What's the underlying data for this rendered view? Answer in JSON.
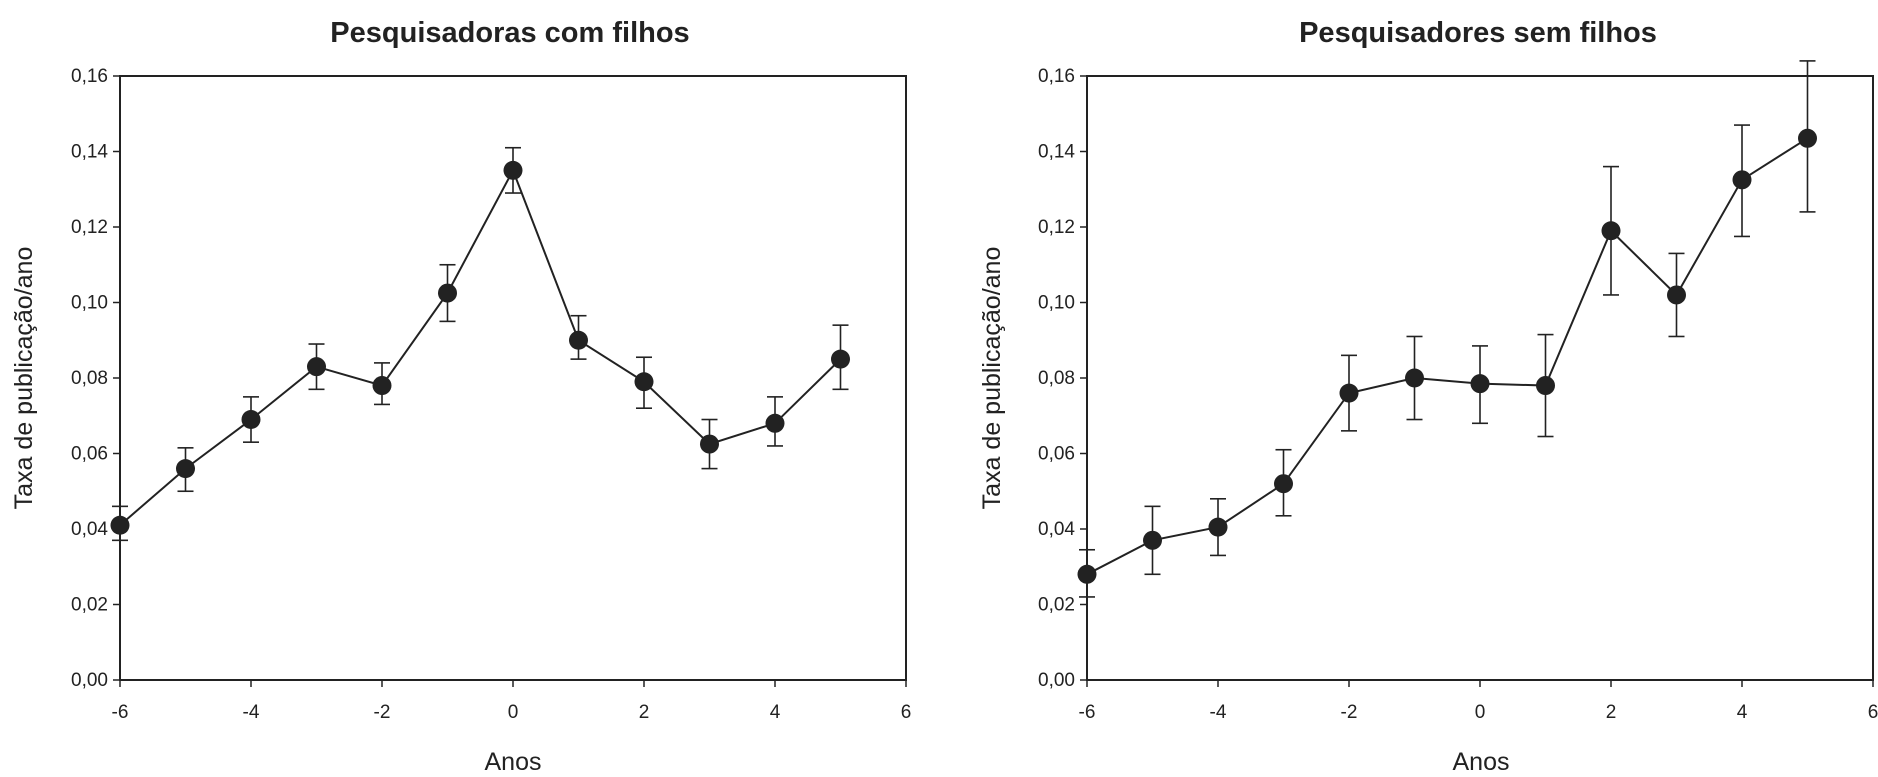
{
  "chart_data": [
    {
      "type": "line",
      "title": "Pesquisadoras com filhos",
      "xlabel": "Anos",
      "ylabel": "Taxa de publicação/ano",
      "xlim": [
        -6,
        6
      ],
      "ylim": [
        0,
        0.16
      ],
      "xticks": [
        "-6",
        "-4",
        "-2",
        "0",
        "2",
        "4",
        "6"
      ],
      "yticks": [
        "0,00",
        "0,02",
        "0,04",
        "0,06",
        "0,08",
        "0,10",
        "0,12",
        "0,14",
        "0,16"
      ],
      "grid": false,
      "marker_color": "#222222",
      "series": [
        {
          "x": [
            -6,
            -5,
            -4,
            -3,
            -2,
            -1,
            0,
            1,
            2,
            3,
            4,
            5
          ],
          "y": [
            0.041,
            0.056,
            0.069,
            0.083,
            0.078,
            0.1025,
            0.135,
            0.09,
            0.079,
            0.0625,
            0.068,
            0.085
          ],
          "err_low": [
            0.037,
            0.05,
            0.063,
            0.077,
            0.073,
            0.095,
            0.129,
            0.085,
            0.072,
            0.056,
            0.062,
            0.077
          ],
          "err_high": [
            0.046,
            0.0615,
            0.075,
            0.089,
            0.084,
            0.11,
            0.141,
            0.0965,
            0.0855,
            0.069,
            0.075,
            0.094
          ]
        }
      ]
    },
    {
      "type": "line",
      "title": "Pesquisadores sem filhos",
      "xlabel": "Anos",
      "ylabel": "Taxa de publicação/ano",
      "xlim": [
        -6,
        6
      ],
      "ylim": [
        0,
        0.16
      ],
      "xticks": [
        "-6",
        "-4",
        "-2",
        "0",
        "2",
        "4",
        "6"
      ],
      "yticks": [
        "0,00",
        "0,02",
        "0,04",
        "0,06",
        "0,08",
        "0,10",
        "0,12",
        "0,14",
        "0,16"
      ],
      "grid": false,
      "marker_color": "#222222",
      "series": [
        {
          "x": [
            -6,
            -5,
            -4,
            -3,
            -2,
            -1,
            0,
            1,
            2,
            3,
            4,
            5
          ],
          "y": [
            0.028,
            0.037,
            0.0405,
            0.052,
            0.076,
            0.08,
            0.0785,
            0.078,
            0.119,
            0.102,
            0.1325,
            0.1435
          ],
          "err_low": [
            0.022,
            0.028,
            0.033,
            0.0435,
            0.066,
            0.069,
            0.068,
            0.0645,
            0.102,
            0.091,
            0.1175,
            0.124
          ],
          "err_high": [
            0.0345,
            0.046,
            0.048,
            0.061,
            0.086,
            0.091,
            0.0885,
            0.0915,
            0.136,
            0.113,
            0.147,
            0.164
          ]
        }
      ]
    }
  ]
}
